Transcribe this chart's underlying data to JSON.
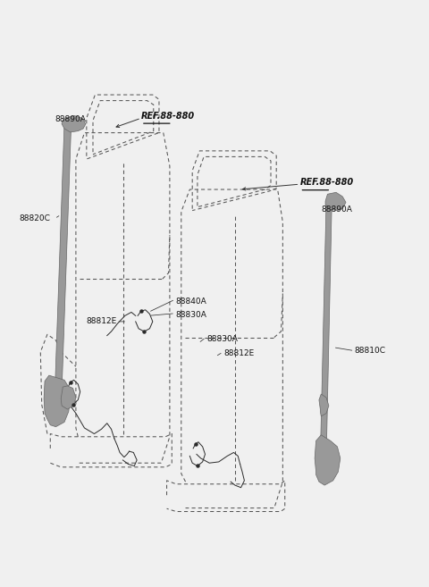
{
  "bg_color": "#f0f0f0",
  "line_color": "#2a2a2a",
  "seat_dash_color": "#555555",
  "belt_gray": "#999999",
  "belt_dark": "#666666",
  "label_color": "#111111",
  "font_size": 6.5,
  "ref_font_size": 7.0,
  "labels": {
    "88890A_L": [
      0.125,
      0.798,
      "88890A"
    ],
    "88820C": [
      0.042,
      0.628,
      "88820C"
    ],
    "REF_L": [
      0.328,
      0.796,
      "REF.88-880"
    ],
    "REF_R": [
      0.7,
      0.682,
      "REF.88-880"
    ],
    "88890A_R": [
      0.75,
      0.643,
      "88890A"
    ],
    "88840A": [
      0.408,
      0.487,
      "88840A"
    ],
    "88830A_M": [
      0.408,
      0.464,
      "88830A"
    ],
    "88812E_L": [
      0.2,
      0.452,
      "88812E"
    ],
    "88830A_R": [
      0.482,
      0.422,
      "88830A"
    ],
    "88812E_R": [
      0.522,
      0.397,
      "88812E"
    ],
    "88810C": [
      0.828,
      0.402,
      "88810C"
    ]
  }
}
